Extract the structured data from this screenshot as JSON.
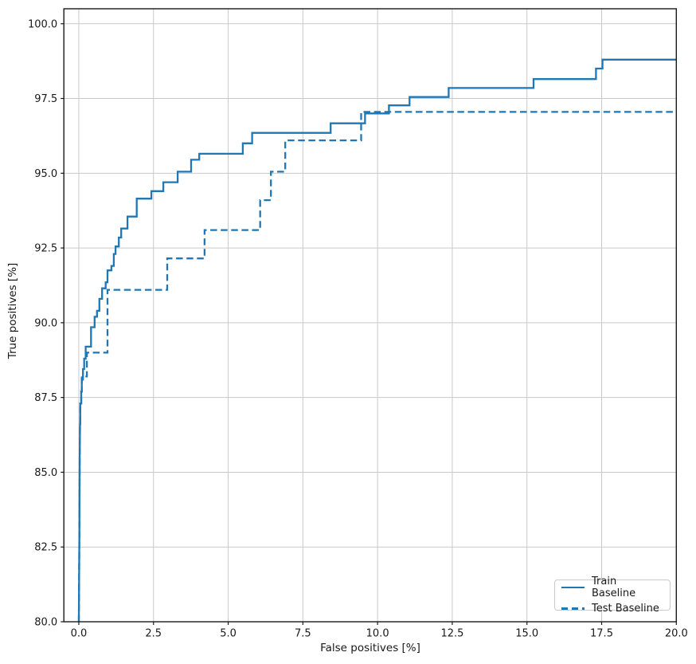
{
  "chart_data": {
    "type": "line",
    "title": "",
    "xlabel": "False positives [%]",
    "ylabel": "True positives [%]",
    "xlim": [
      -0.5,
      20.0
    ],
    "ylim": [
      80.0,
      100.5
    ],
    "xticks": [
      0.0,
      2.5,
      5.0,
      7.5,
      10.0,
      12.5,
      15.0,
      17.5,
      20.0
    ],
    "xtick_labels": [
      "0.0",
      "2.5",
      "5.0",
      "7.5",
      "10.0",
      "12.5",
      "15.0",
      "17.5",
      "20.0"
    ],
    "yticks": [
      80.0,
      82.5,
      85.0,
      87.5,
      90.0,
      92.5,
      95.0,
      97.5,
      100.0
    ],
    "ytick_labels": [
      "80.0",
      "82.5",
      "85.0",
      "87.5",
      "90.0",
      "92.5",
      "95.0",
      "97.5",
      "100.0"
    ],
    "grid": true,
    "grid_color": "#c9c9c9",
    "axis_color": "#1a1a1a",
    "line_color": "#1f77b4",
    "legend": {
      "position": "lower right",
      "entries": [
        "Train Baseline",
        "Test Baseline"
      ]
    },
    "series": [
      {
        "name": "Train Baseline",
        "line_style": "solid",
        "points": [
          [
            0.0,
            80.0
          ],
          [
            0.02,
            83.0
          ],
          [
            0.03,
            85.5
          ],
          [
            0.04,
            86.6
          ],
          [
            0.05,
            86.6
          ],
          [
            0.05,
            87.3
          ],
          [
            0.08,
            87.3
          ],
          [
            0.08,
            87.7
          ],
          [
            0.1,
            87.7
          ],
          [
            0.1,
            88.1
          ],
          [
            0.14,
            88.1
          ],
          [
            0.14,
            88.45
          ],
          [
            0.18,
            88.45
          ],
          [
            0.18,
            88.8
          ],
          [
            0.23,
            88.8
          ],
          [
            0.23,
            89.2
          ],
          [
            0.41,
            89.2
          ],
          [
            0.41,
            89.85
          ],
          [
            0.53,
            89.85
          ],
          [
            0.53,
            90.2
          ],
          [
            0.61,
            90.2
          ],
          [
            0.61,
            90.4
          ],
          [
            0.69,
            90.4
          ],
          [
            0.69,
            90.8
          ],
          [
            0.78,
            90.8
          ],
          [
            0.78,
            91.15
          ],
          [
            0.9,
            91.15
          ],
          [
            0.9,
            91.35
          ],
          [
            0.96,
            91.35
          ],
          [
            0.96,
            91.75
          ],
          [
            1.09,
            91.75
          ],
          [
            1.09,
            91.9
          ],
          [
            1.17,
            91.9
          ],
          [
            1.17,
            92.3
          ],
          [
            1.23,
            92.3
          ],
          [
            1.23,
            92.55
          ],
          [
            1.34,
            92.55
          ],
          [
            1.34,
            92.85
          ],
          [
            1.42,
            92.85
          ],
          [
            1.42,
            93.15
          ],
          [
            1.63,
            93.15
          ],
          [
            1.63,
            93.55
          ],
          [
            1.94,
            93.55
          ],
          [
            1.94,
            94.15
          ],
          [
            2.43,
            94.15
          ],
          [
            2.43,
            94.4
          ],
          [
            2.83,
            94.4
          ],
          [
            2.83,
            94.7
          ],
          [
            3.31,
            94.7
          ],
          [
            3.31,
            95.05
          ],
          [
            3.76,
            95.05
          ],
          [
            3.76,
            95.45
          ],
          [
            4.03,
            95.45
          ],
          [
            4.03,
            95.65
          ],
          [
            5.49,
            95.65
          ],
          [
            5.49,
            96.0
          ],
          [
            5.8,
            96.0
          ],
          [
            5.8,
            96.35
          ],
          [
            8.43,
            96.35
          ],
          [
            8.43,
            96.67
          ],
          [
            9.58,
            96.67
          ],
          [
            9.58,
            97.0
          ],
          [
            10.38,
            97.0
          ],
          [
            10.38,
            97.27
          ],
          [
            11.07,
            97.27
          ],
          [
            11.07,
            97.55
          ],
          [
            12.38,
            97.55
          ],
          [
            12.38,
            97.85
          ],
          [
            15.22,
            97.85
          ],
          [
            15.22,
            98.15
          ],
          [
            17.31,
            98.15
          ],
          [
            17.31,
            98.5
          ],
          [
            17.53,
            98.5
          ],
          [
            17.53,
            98.8
          ],
          [
            20.0,
            98.8
          ]
        ]
      },
      {
        "name": "Test Baseline",
        "line_style": "dashed",
        "points": [
          [
            0.0,
            80.0
          ],
          [
            0.02,
            83.0
          ],
          [
            0.03,
            85.5
          ],
          [
            0.04,
            86.6
          ],
          [
            0.05,
            86.6
          ],
          [
            0.05,
            87.3
          ],
          [
            0.08,
            87.3
          ],
          [
            0.08,
            87.7
          ],
          [
            0.1,
            87.7
          ],
          [
            0.1,
            88.2
          ],
          [
            0.27,
            88.2
          ],
          [
            0.27,
            89.0
          ],
          [
            0.96,
            89.0
          ],
          [
            0.96,
            91.1
          ],
          [
            2.96,
            91.1
          ],
          [
            2.96,
            92.15
          ],
          [
            4.21,
            92.15
          ],
          [
            4.21,
            93.1
          ],
          [
            6.07,
            93.1
          ],
          [
            6.07,
            94.1
          ],
          [
            6.43,
            94.1
          ],
          [
            6.43,
            95.05
          ],
          [
            6.91,
            95.05
          ],
          [
            6.91,
            96.1
          ],
          [
            9.45,
            96.1
          ],
          [
            9.45,
            97.05
          ],
          [
            20.0,
            97.05
          ]
        ]
      }
    ]
  }
}
